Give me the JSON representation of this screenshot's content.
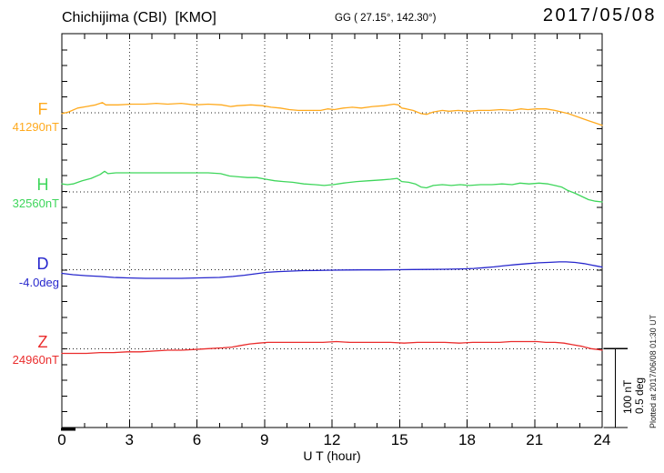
{
  "header": {
    "station_title": "Chichijima (CBI)  [KMO]",
    "coordinates": "GG ( 27.15°, 142.30°)",
    "date": "2017/05/08"
  },
  "annotations": {
    "scale_bar_nt": "100 nT",
    "scale_bar_deg": "0.5 deg",
    "plotted_at": "Plotted at 2017/06/08 01:30 UT"
  },
  "chart_data": {
    "type": "line",
    "title": "Chichijima (CBI) [KMO] magnetogram 2017/05/08",
    "xlabel": "U T (hour)",
    "x": {
      "min": 0,
      "max": 24,
      "tick_hours": [
        0,
        3,
        6,
        9,
        12,
        15,
        18,
        21,
        24
      ],
      "tick_labels": [
        "0",
        "3",
        "6",
        "9",
        "12",
        "15",
        "18",
        "21",
        "24"
      ],
      "minor_tick_every_hours": 1,
      "grid_hours": [
        3,
        6,
        9,
        12,
        15,
        18,
        21
      ],
      "grid": "dotted-vertical"
    },
    "scale": {
      "division_nT": 100,
      "division_deg": 0.5,
      "y_minor_tick_nT": 20
    },
    "series": [
      {
        "id": "F",
        "label": "F",
        "unit": "nT",
        "baseline_label": "41290nT",
        "baseline_value": 41290,
        "color": "#ffaa1e",
        "points": [
          [
            0,
            41289
          ],
          [
            0.3,
            41291
          ],
          [
            0.7,
            41296
          ],
          [
            1.1,
            41298
          ],
          [
            1.5,
            41300
          ],
          [
            1.8,
            41303
          ],
          [
            1.95,
            41300
          ],
          [
            2.5,
            41300
          ],
          [
            3.1,
            41301
          ],
          [
            3.7,
            41301
          ],
          [
            4.2,
            41302
          ],
          [
            4.7,
            41301
          ],
          [
            5.3,
            41302
          ],
          [
            5.9,
            41300
          ],
          [
            6.5,
            41301
          ],
          [
            7.1,
            41300
          ],
          [
            7.5,
            41298
          ],
          [
            7.8,
            41299
          ],
          [
            8.4,
            41300
          ],
          [
            8.9,
            41299
          ],
          [
            9.3,
            41297
          ],
          [
            9.7,
            41296
          ],
          [
            10.1,
            41294
          ],
          [
            10.5,
            41293
          ],
          [
            11.0,
            41293
          ],
          [
            11.5,
            41293
          ],
          [
            11.8,
            41295
          ],
          [
            12.1,
            41294
          ],
          [
            12.5,
            41296
          ],
          [
            12.9,
            41297
          ],
          [
            13.3,
            41296
          ],
          [
            13.8,
            41298
          ],
          [
            14.3,
            41299
          ],
          [
            14.75,
            41301
          ],
          [
            14.95,
            41300
          ],
          [
            15.1,
            41296
          ],
          [
            15.3,
            41295
          ],
          [
            15.6,
            41293
          ],
          [
            15.95,
            41289
          ],
          [
            16.2,
            41288
          ],
          [
            16.5,
            41291
          ],
          [
            16.9,
            41293
          ],
          [
            17.2,
            41292
          ],
          [
            17.6,
            41293
          ],
          [
            18.1,
            41292
          ],
          [
            18.5,
            41293
          ],
          [
            19.0,
            41293
          ],
          [
            19.5,
            41294
          ],
          [
            20.0,
            41293
          ],
          [
            20.4,
            41295
          ],
          [
            20.7,
            41294
          ],
          [
            21.1,
            41295
          ],
          [
            21.5,
            41295
          ],
          [
            21.9,
            41293
          ],
          [
            22.2,
            41291
          ],
          [
            22.5,
            41289
          ],
          [
            22.8,
            41286
          ],
          [
            23.1,
            41283
          ],
          [
            23.4,
            41280
          ],
          [
            23.7,
            41277
          ],
          [
            24,
            41274
          ]
        ]
      },
      {
        "id": "H",
        "label": "H",
        "unit": "nT",
        "baseline_label": "32560nT",
        "baseline_value": 32560,
        "color": "#3ed65b",
        "points": [
          [
            0,
            32570
          ],
          [
            0.25,
            32569
          ],
          [
            0.5,
            32570
          ],
          [
            0.9,
            32574
          ],
          [
            1.3,
            32577
          ],
          [
            1.7,
            32582
          ],
          [
            1.9,
            32586
          ],
          [
            2.05,
            32583
          ],
          [
            2.4,
            32584
          ],
          [
            2.9,
            32584
          ],
          [
            3.5,
            32584
          ],
          [
            4.1,
            32584
          ],
          [
            4.7,
            32584
          ],
          [
            5.3,
            32584
          ],
          [
            5.9,
            32584
          ],
          [
            6.5,
            32584
          ],
          [
            7.05,
            32583
          ],
          [
            7.45,
            32580
          ],
          [
            7.85,
            32579
          ],
          [
            8.25,
            32578
          ],
          [
            8.65,
            32578
          ],
          [
            9.05,
            32576
          ],
          [
            9.45,
            32574
          ],
          [
            9.85,
            32573
          ],
          [
            10.25,
            32572
          ],
          [
            10.75,
            32570
          ],
          [
            11.25,
            32569
          ],
          [
            11.65,
            32568
          ],
          [
            12.05,
            32569
          ],
          [
            12.5,
            32571
          ],
          [
            13.1,
            32573
          ],
          [
            13.65,
            32574
          ],
          [
            14.2,
            32575
          ],
          [
            14.6,
            32576
          ],
          [
            14.9,
            32577
          ],
          [
            15.1,
            32573
          ],
          [
            15.4,
            32572
          ],
          [
            15.7,
            32570
          ],
          [
            15.95,
            32566
          ],
          [
            16.2,
            32565
          ],
          [
            16.5,
            32568
          ],
          [
            16.9,
            32569
          ],
          [
            17.3,
            32568
          ],
          [
            17.7,
            32569
          ],
          [
            18.1,
            32568
          ],
          [
            18.6,
            32569
          ],
          [
            19.1,
            32569
          ],
          [
            19.55,
            32570
          ],
          [
            20.0,
            32569
          ],
          [
            20.35,
            32571
          ],
          [
            20.75,
            32570
          ],
          [
            21.2,
            32571
          ],
          [
            21.6,
            32570
          ],
          [
            21.9,
            32568
          ],
          [
            22.2,
            32566
          ],
          [
            22.45,
            32562
          ],
          [
            22.8,
            32558
          ],
          [
            23.1,
            32554
          ],
          [
            23.4,
            32550
          ],
          [
            23.7,
            32548
          ],
          [
            24,
            32547
          ]
        ]
      },
      {
        "id": "D",
        "label": "D",
        "unit": "deg",
        "baseline_label": "-4.0deg",
        "baseline_value": -4.0,
        "color": "#2727cd",
        "points": [
          [
            0,
            -4.023
          ],
          [
            0.5,
            -4.032
          ],
          [
            1.1,
            -4.038
          ],
          [
            1.7,
            -4.043
          ],
          [
            2.3,
            -4.049
          ],
          [
            2.9,
            -4.052
          ],
          [
            3.7,
            -4.055
          ],
          [
            4.5,
            -4.055
          ],
          [
            5.3,
            -4.055
          ],
          [
            6.1,
            -4.052
          ],
          [
            7.0,
            -4.049
          ],
          [
            7.6,
            -4.043
          ],
          [
            8.1,
            -4.035
          ],
          [
            8.6,
            -4.026
          ],
          [
            9.1,
            -4.017
          ],
          [
            9.6,
            -4.012
          ],
          [
            10.1,
            -4.009
          ],
          [
            10.7,
            -4.006
          ],
          [
            11.3,
            -4.005
          ],
          [
            12.0,
            -4.003
          ],
          [
            12.7,
            -4.002
          ],
          [
            13.4,
            -4.001
          ],
          [
            14.1,
            -4.001
          ],
          [
            14.9,
            -4.0
          ],
          [
            15.6,
            -3.999
          ],
          [
            16.3,
            -3.998
          ],
          [
            17.0,
            -3.997
          ],
          [
            17.8,
            -3.995
          ],
          [
            18.3,
            -3.992
          ],
          [
            18.75,
            -3.987
          ],
          [
            19.2,
            -3.982
          ],
          [
            19.7,
            -3.974
          ],
          [
            20.2,
            -3.967
          ],
          [
            20.7,
            -3.961
          ],
          [
            21.2,
            -3.956
          ],
          [
            21.7,
            -3.953
          ],
          [
            22.1,
            -3.95
          ],
          [
            22.4,
            -3.95
          ],
          [
            22.8,
            -3.954
          ],
          [
            23.2,
            -3.961
          ],
          [
            23.5,
            -3.97
          ],
          [
            23.8,
            -3.978
          ],
          [
            24,
            -3.983
          ]
        ]
      },
      {
        "id": "Z",
        "label": "Z",
        "unit": "nT",
        "baseline_label": "24960nT",
        "baseline_value": 24960,
        "color": "#ea2c2c",
        "points": [
          [
            0,
            24954
          ],
          [
            0.5,
            24954
          ],
          [
            1.1,
            24954
          ],
          [
            1.7,
            24955
          ],
          [
            2.3,
            24955
          ],
          [
            2.9,
            24956
          ],
          [
            3.5,
            24956
          ],
          [
            4.1,
            24957
          ],
          [
            4.7,
            24958
          ],
          [
            5.3,
            24958
          ],
          [
            5.9,
            24959
          ],
          [
            6.5,
            24960
          ],
          [
            7.15,
            24961
          ],
          [
            7.55,
            24962
          ],
          [
            7.95,
            24964
          ],
          [
            8.35,
            24966
          ],
          [
            8.75,
            24967
          ],
          [
            9.15,
            24968
          ],
          [
            9.8,
            24968
          ],
          [
            10.4,
            24968
          ],
          [
            11.0,
            24968
          ],
          [
            11.6,
            24968
          ],
          [
            12.2,
            24969
          ],
          [
            12.8,
            24968
          ],
          [
            13.4,
            24968
          ],
          [
            14.0,
            24968
          ],
          [
            14.6,
            24968
          ],
          [
            15.2,
            24967
          ],
          [
            15.8,
            24968
          ],
          [
            16.4,
            24968
          ],
          [
            17.0,
            24968
          ],
          [
            17.65,
            24967
          ],
          [
            18.25,
            24968
          ],
          [
            18.9,
            24968
          ],
          [
            19.45,
            24968
          ],
          [
            19.95,
            24969
          ],
          [
            20.5,
            24969
          ],
          [
            21.1,
            24969
          ],
          [
            21.5,
            24968
          ],
          [
            21.9,
            24968
          ],
          [
            22.3,
            24967
          ],
          [
            22.7,
            24965
          ],
          [
            23.1,
            24963
          ],
          [
            23.5,
            24960
          ],
          [
            23.8,
            24959
          ],
          [
            24,
            24958
          ]
        ]
      }
    ]
  }
}
